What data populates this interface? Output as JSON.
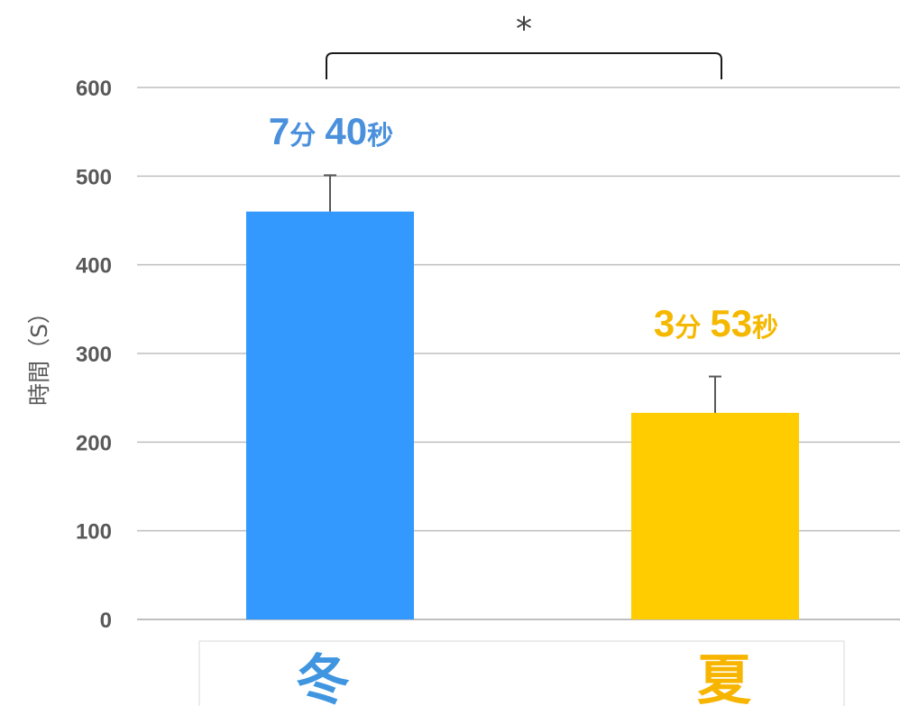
{
  "chart_data": {
    "type": "bar",
    "categories": [
      "冬",
      "夏"
    ],
    "values": [
      460,
      233
    ],
    "errors": [
      41,
      41
    ],
    "colors": [
      "#3399FF",
      "#FFCC00"
    ],
    "category_label_colors": [
      "#3F95E0",
      "#F7B500"
    ],
    "data_labels": [
      {
        "num1": "7",
        "unit1": "分",
        "num2": "40",
        "unit2": "秒"
      },
      {
        "num1": "3",
        "unit1": "分",
        "num2": "53",
        "unit2": "秒"
      }
    ],
    "data_label_colors": [
      "#4A90DC",
      "#F5B800"
    ],
    "ylabel": "時間（S）",
    "ylim": [
      0,
      600
    ],
    "yticks": [
      "0",
      "100",
      "200",
      "300",
      "400",
      "500",
      "600"
    ],
    "significance": "*",
    "grid": true
  }
}
